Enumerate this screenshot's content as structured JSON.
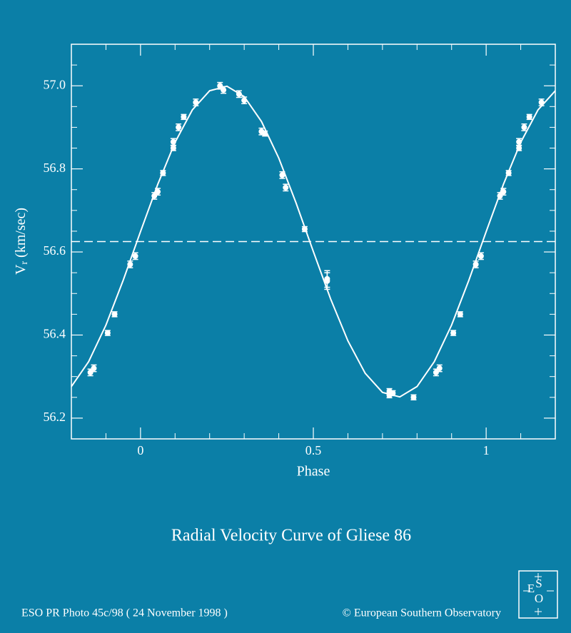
{
  "chart_data": {
    "type": "scatter",
    "title": "Radial Velocity Curve of Gliese 86",
    "x_label": "Phase",
    "y_label": {
      "main": "V",
      "sub": "r",
      "rest": "(km/sec)"
    },
    "credit_left": "ESO PR Photo 45c/98 ( 24 November 1998 )",
    "credit_right": "© European Southern Observatory",
    "logo_letters": [
      "E",
      "S",
      "O"
    ],
    "xlim": [
      -0.2,
      1.2
    ],
    "ylim": [
      56.15,
      57.1
    ],
    "xticks": [
      0,
      {
        "value": 0.5,
        "label": "0.5"
      },
      1
    ],
    "yticks": [
      {
        "value": 56.2,
        "label": "56.2"
      },
      {
        "value": 56.4,
        "label": "56.4"
      },
      {
        "value": 56.6,
        "label": "56.6"
      },
      {
        "value": 56.8,
        "label": "56.8"
      },
      {
        "value": 57.0,
        "label": "57.0"
      }
    ],
    "xminor": [
      -0.1,
      0.1,
      0.2,
      0.3,
      0.4,
      0.6,
      0.7,
      0.8,
      0.9,
      1.1
    ],
    "yminor": [
      56.25,
      56.3,
      56.35,
      56.45,
      56.5,
      56.55,
      56.65,
      56.7,
      56.75,
      56.85,
      56.9,
      56.95,
      57.05
    ],
    "mean_line": 56.625,
    "color": "#ffffff",
    "series": [
      {
        "x": [
          -0.145,
          -0.135,
          -0.095,
          -0.075,
          -0.03,
          -0.015,
          0.04,
          0.05,
          0.065,
          0.095,
          0.095,
          0.11,
          0.125,
          0.16,
          0.23,
          0.24,
          0.285,
          0.3,
          0.35,
          0.36,
          0.41,
          0.42,
          0.475,
          0.54,
          0.54,
          0.72,
          0.72,
          0.73,
          0.79,
          0.855,
          0.865,
          0.905,
          0.925,
          0.97,
          0.985,
          1.04,
          1.05,
          1.065,
          1.095,
          1.095,
          1.11,
          1.125,
          1.16
        ],
        "values": [
          56.31,
          56.32,
          56.405,
          56.45,
          56.57,
          56.59,
          56.735,
          56.745,
          56.79,
          56.85,
          56.865,
          56.9,
          56.925,
          56.96,
          57.0,
          56.99,
          56.98,
          56.965,
          56.89,
          56.885,
          56.785,
          56.755,
          56.655,
          56.535,
          56.53,
          56.265,
          56.255,
          56.26,
          56.25,
          56.31,
          56.32,
          56.405,
          56.45,
          56.57,
          56.59,
          56.735,
          56.745,
          56.79,
          56.85,
          56.865,
          56.9,
          56.925,
          56.96
        ],
        "errors": [
          0.008,
          0.008,
          0.006,
          0.006,
          0.008,
          0.008,
          0.008,
          0.008,
          0.006,
          0.006,
          0.008,
          0.008,
          0.006,
          0.008,
          0.008,
          0.008,
          0.008,
          0.008,
          0.008,
          0.006,
          0.008,
          0.008,
          0.006,
          0.02,
          0.02,
          0.006,
          0.006,
          0.006,
          0.006,
          0.008,
          0.008,
          0.006,
          0.006,
          0.008,
          0.008,
          0.008,
          0.008,
          0.006,
          0.006,
          0.008,
          0.008,
          0.006,
          0.008
        ]
      }
    ],
    "fit": {
      "x": [
        -0.2,
        -0.15,
        -0.1,
        -0.05,
        0,
        0.05,
        0.1,
        0.15,
        0.2,
        0.25,
        0.3,
        0.35,
        0.4,
        0.45,
        0.5,
        0.55,
        0.6,
        0.65,
        0.7,
        0.75,
        0.8,
        0.85,
        0.9,
        0.95,
        1.0,
        1.05,
        1.1,
        1.15,
        1.2
      ],
      "values": [
        56.276,
        56.336,
        56.424,
        56.532,
        56.649,
        56.763,
        56.864,
        56.942,
        56.988,
        56.999,
        56.974,
        56.914,
        56.826,
        56.718,
        56.601,
        56.487,
        56.386,
        56.308,
        56.262,
        56.251,
        56.276,
        56.336,
        56.424,
        56.532,
        56.649,
        56.763,
        56.864,
        56.942,
        56.988
      ]
    }
  }
}
